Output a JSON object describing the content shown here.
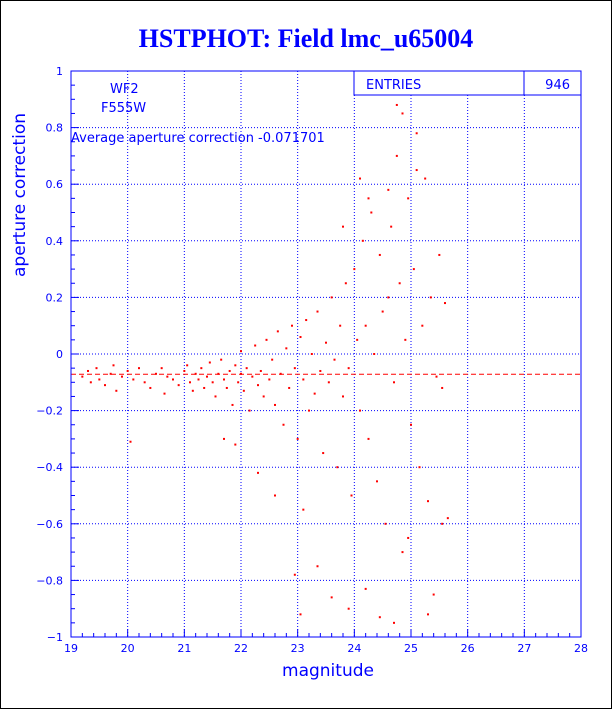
{
  "chart_data": {
    "type": "scatter",
    "title": "HSTPHOT: Field lmc_u65004",
    "xlabel": "magnitude",
    "ylabel": "aperture correction",
    "xlim": [
      19,
      28
    ],
    "ylim": [
      -1,
      1
    ],
    "xticks": [
      "19",
      "20",
      "21",
      "22",
      "23",
      "24",
      "25",
      "26",
      "27",
      "28"
    ],
    "yticks": [
      "-1",
      "-0.8",
      "-0.6",
      "-0.4",
      "-0.2",
      "0",
      "0.2",
      "0.4",
      "0.6",
      "0.8",
      "1"
    ],
    "grid": true,
    "annotations": {
      "chip": "WF2",
      "filter": "F555W",
      "average": "Average aperture correction -0.071701"
    },
    "average_line": -0.071701,
    "stats": {
      "label": "ENTRIES",
      "value": "946"
    },
    "colors": {
      "text": "#0000ff",
      "points": "#ff0000",
      "grid": "#0000ff"
    },
    "points": [
      [
        19.2,
        -0.08
      ],
      [
        19.3,
        -0.06
      ],
      [
        19.35,
        -0.1
      ],
      [
        19.45,
        -0.05
      ],
      [
        19.5,
        -0.09
      ],
      [
        19.6,
        -0.11
      ],
      [
        19.7,
        -0.07
      ],
      [
        19.75,
        -0.04
      ],
      [
        19.8,
        -0.13
      ],
      [
        19.9,
        -0.08
      ],
      [
        20.0,
        -0.06
      ],
      [
        20.05,
        -0.31
      ],
      [
        20.1,
        -0.09
      ],
      [
        20.2,
        -0.05
      ],
      [
        20.3,
        -0.1
      ],
      [
        20.4,
        -0.12
      ],
      [
        20.5,
        -0.07
      ],
      [
        20.6,
        -0.05
      ],
      [
        20.65,
        -0.14
      ],
      [
        20.7,
        -0.08
      ],
      [
        20.8,
        -0.09
      ],
      [
        20.9,
        -0.11
      ],
      [
        21.0,
        -0.06
      ],
      [
        21.05,
        -0.04
      ],
      [
        21.1,
        -0.1
      ],
      [
        21.15,
        -0.13
      ],
      [
        21.2,
        -0.07
      ],
      [
        21.25,
        -0.09
      ],
      [
        21.3,
        -0.05
      ],
      [
        21.35,
        -0.12
      ],
      [
        21.4,
        -0.08
      ],
      [
        21.45,
        -0.03
      ],
      [
        21.5,
        -0.1
      ],
      [
        21.55,
        -0.15
      ],
      [
        21.6,
        -0.07
      ],
      [
        21.65,
        -0.02
      ],
      [
        21.7,
        -0.09
      ],
      [
        21.75,
        -0.12
      ],
      [
        21.8,
        -0.06
      ],
      [
        21.85,
        -0.18
      ],
      [
        21.9,
        -0.04
      ],
      [
        21.95,
        -0.1
      ],
      [
        22.0,
        -0.07
      ],
      [
        22.0,
        0.01
      ],
      [
        22.05,
        -0.13
      ],
      [
        22.1,
        -0.05
      ],
      [
        22.15,
        -0.2
      ],
      [
        22.2,
        -0.08
      ],
      [
        22.25,
        0.03
      ],
      [
        22.3,
        -0.11
      ],
      [
        22.35,
        -0.06
      ],
      [
        22.4,
        -0.15
      ],
      [
        22.45,
        0.05
      ],
      [
        22.5,
        -0.09
      ],
      [
        22.55,
        -0.02
      ],
      [
        22.6,
        -0.18
      ],
      [
        22.65,
        0.08
      ],
      [
        22.7,
        -0.07
      ],
      [
        22.75,
        -0.25
      ],
      [
        22.8,
        0.02
      ],
      [
        22.85,
        -0.12
      ],
      [
        22.9,
        0.1
      ],
      [
        22.95,
        -0.05
      ],
      [
        23.0,
        -0.3
      ],
      [
        23.05,
        0.06
      ],
      [
        23.1,
        -0.09
      ],
      [
        23.15,
        0.12
      ],
      [
        23.2,
        -0.2
      ],
      [
        23.25,
        0.0
      ],
      [
        23.3,
        -0.14
      ],
      [
        23.35,
        0.15
      ],
      [
        23.4,
        -0.06
      ],
      [
        23.45,
        -0.35
      ],
      [
        23.5,
        0.04
      ],
      [
        23.55,
        -0.1
      ],
      [
        23.6,
        0.2
      ],
      [
        23.65,
        -0.02
      ],
      [
        23.7,
        -0.4
      ],
      [
        23.75,
        0.1
      ],
      [
        23.8,
        -0.15
      ],
      [
        23.85,
        0.25
      ],
      [
        23.9,
        -0.05
      ],
      [
        23.95,
        -0.5
      ],
      [
        24.0,
        0.3
      ],
      [
        24.05,
        0.05
      ],
      [
        24.1,
        -0.2
      ],
      [
        24.15,
        0.4
      ],
      [
        24.2,
        0.1
      ],
      [
        24.25,
        -0.3
      ],
      [
        24.3,
        0.5
      ],
      [
        24.35,
        0.0
      ],
      [
        24.4,
        -0.45
      ],
      [
        24.45,
        0.35
      ],
      [
        24.5,
        0.15
      ],
      [
        24.55,
        -0.6
      ],
      [
        24.6,
        0.2
      ],
      [
        24.65,
        0.45
      ],
      [
        24.7,
        -0.1
      ],
      [
        24.75,
        0.7
      ],
      [
        24.8,
        0.25
      ],
      [
        24.85,
        -0.7
      ],
      [
        24.9,
        0.05
      ],
      [
        24.95,
        0.55
      ],
      [
        25.0,
        -0.25
      ],
      [
        25.05,
        0.3
      ],
      [
        25.1,
        0.65
      ],
      [
        25.15,
        -0.4
      ],
      [
        25.2,
        0.1
      ],
      [
        25.25,
        0.62
      ],
      [
        25.3,
        -0.52
      ],
      [
        25.35,
        0.2
      ],
      [
        25.4,
        -0.85
      ],
      [
        25.45,
        -0.08
      ],
      [
        25.5,
        0.35
      ],
      [
        25.55,
        -0.6
      ],
      [
        25.6,
        0.18
      ],
      [
        25.65,
        -0.58
      ],
      [
        24.75,
        0.88
      ],
      [
        24.85,
        0.85
      ],
      [
        25.1,
        0.78
      ],
      [
        22.6,
        -0.5
      ],
      [
        22.3,
        -0.42
      ],
      [
        21.7,
        -0.3
      ],
      [
        21.9,
        -0.32
      ],
      [
        23.1,
        -0.55
      ],
      [
        23.35,
        -0.75
      ],
      [
        23.6,
        -0.86
      ],
      [
        23.9,
        -0.9
      ],
      [
        24.45,
        -0.93
      ],
      [
        24.7,
        -0.95
      ],
      [
        23.05,
        -0.92
      ],
      [
        22.95,
        -0.78
      ],
      [
        24.2,
        -0.83
      ],
      [
        24.95,
        -0.65
      ],
      [
        25.3,
        -0.92
      ],
      [
        25.55,
        -0.12
      ],
      [
        24.1,
        0.62
      ],
      [
        24.25,
        0.55
      ],
      [
        23.8,
        0.45
      ],
      [
        24.6,
        0.58
      ]
    ]
  }
}
